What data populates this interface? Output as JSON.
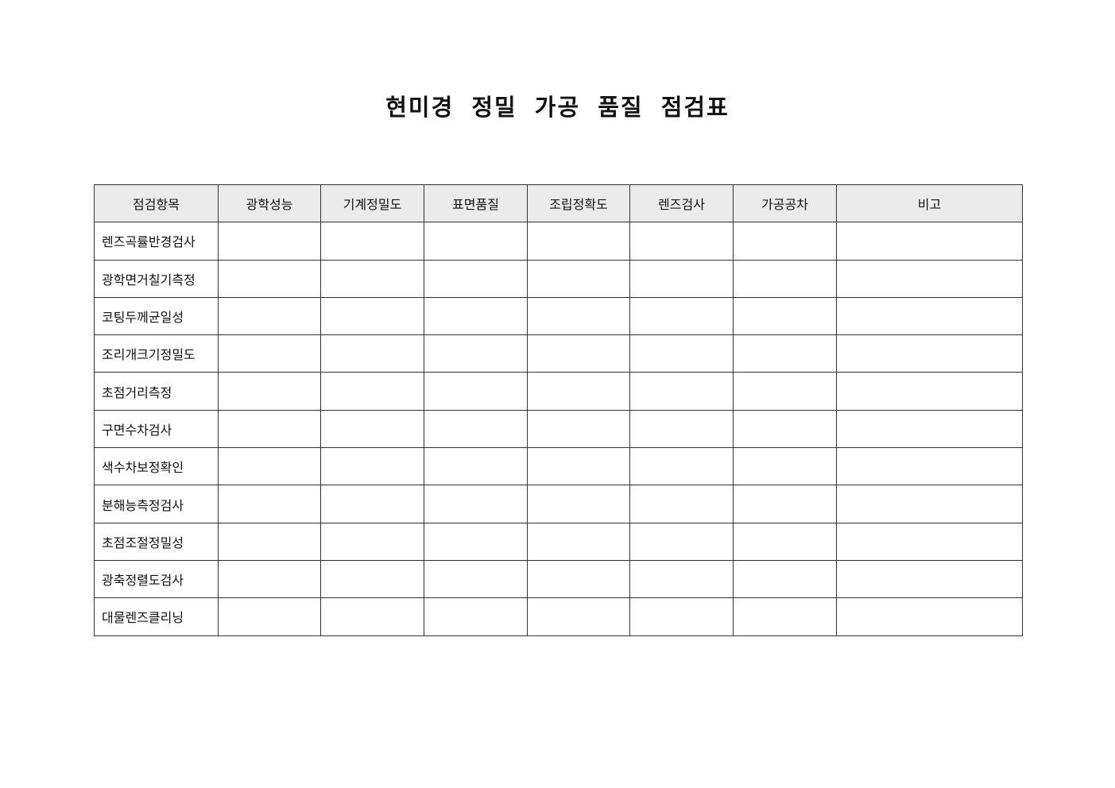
{
  "title": "현미경 정밀 가공 품질 점검표",
  "table": {
    "headers": [
      "점검항목",
      "광학성능",
      "기계정밀도",
      "표면품질",
      "조립정확도",
      "렌즈검사",
      "가공공차",
      "비고"
    ],
    "rows": [
      "렌즈곡률반경검사",
      "광학면거칠기측정",
      "코팅두께균일성",
      "조리개크기정밀도",
      "초점거리측정",
      "구면수차검사",
      "색수차보정확인",
      "분해능측정검사",
      "초점조절정밀성",
      "광축정렬도검사",
      "대물렌즈클리닝"
    ]
  }
}
